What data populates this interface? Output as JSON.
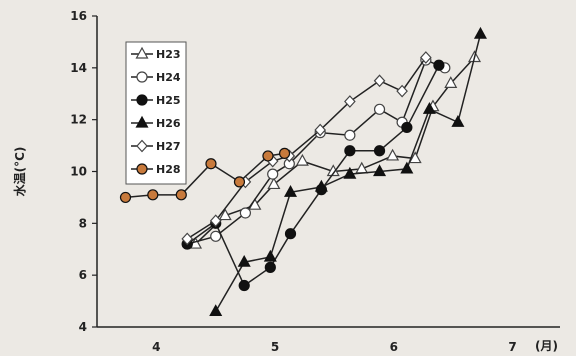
{
  "chart_data": {
    "type": "line",
    "ylabel": "水温(°C)",
    "xunit": "(月)",
    "xlim": [
      3.5,
      7.4
    ],
    "ylim": [
      4,
      16
    ],
    "xticks": [
      {
        "v": 4,
        "label": "4"
      },
      {
        "v": 5,
        "label": "5"
      },
      {
        "v": 6,
        "label": "6"
      },
      {
        "v": 7,
        "label": "7"
      }
    ],
    "yticks": [
      4,
      6,
      8,
      10,
      12,
      14,
      16
    ],
    "grid": false,
    "legend_position": "upper-left",
    "series": [
      {
        "name": "H23",
        "marker": "triangle-open",
        "color": "#555555",
        "points": [
          [
            4.33,
            7.2
          ],
          [
            4.58,
            8.3
          ],
          [
            4.83,
            8.7
          ],
          [
            4.99,
            9.5
          ],
          [
            5.23,
            10.4
          ],
          [
            5.49,
            10.0
          ],
          [
            5.73,
            10.1
          ],
          [
            5.99,
            10.6
          ],
          [
            6.18,
            10.5
          ],
          [
            6.33,
            12.5
          ],
          [
            6.48,
            13.4
          ],
          [
            6.68,
            14.4
          ]
        ]
      },
      {
        "name": "H24",
        "marker": "circle-open",
        "color": "#555555",
        "points": [
          [
            4.26,
            7.2
          ],
          [
            4.5,
            7.5
          ],
          [
            4.75,
            8.4
          ],
          [
            4.98,
            9.9
          ],
          [
            5.12,
            10.3
          ],
          [
            5.38,
            11.5
          ],
          [
            5.63,
            11.4
          ],
          [
            5.88,
            12.4
          ],
          [
            6.07,
            11.9
          ],
          [
            6.27,
            14.3
          ],
          [
            6.43,
            14.0
          ]
        ]
      },
      {
        "name": "H25",
        "marker": "circle-filled",
        "color": "#111111",
        "points": [
          [
            4.26,
            7.2
          ],
          [
            4.5,
            8.0
          ],
          [
            4.74,
            5.6
          ],
          [
            4.96,
            6.3
          ],
          [
            5.13,
            7.6
          ],
          [
            5.39,
            9.3
          ],
          [
            5.63,
            10.8
          ],
          [
            5.88,
            10.8
          ],
          [
            6.11,
            11.7
          ],
          [
            6.38,
            14.1
          ]
        ]
      },
      {
        "name": "H26",
        "marker": "triangle-filled",
        "color": "#111111",
        "points": [
          [
            4.5,
            4.6
          ],
          [
            4.74,
            6.5
          ],
          [
            4.96,
            6.7
          ],
          [
            5.13,
            9.2
          ],
          [
            5.39,
            9.4
          ],
          [
            5.63,
            9.9
          ],
          [
            5.88,
            10.0
          ],
          [
            6.11,
            10.1
          ],
          [
            6.3,
            12.4
          ],
          [
            6.54,
            11.9
          ],
          [
            6.73,
            15.3
          ]
        ]
      },
      {
        "name": "H27",
        "marker": "diamond-open",
        "color": "#555555",
        "points": [
          [
            4.26,
            7.4
          ],
          [
            4.5,
            8.1
          ],
          [
            4.75,
            9.6
          ],
          [
            4.98,
            10.4
          ],
          [
            5.12,
            10.6
          ],
          [
            5.38,
            11.6
          ],
          [
            5.63,
            12.7
          ],
          [
            5.88,
            13.5
          ],
          [
            6.07,
            13.1
          ],
          [
            6.27,
            14.4
          ]
        ]
      },
      {
        "name": "H28",
        "marker": "circle-filled",
        "color": "#c87a3c",
        "points": [
          [
            3.74,
            9.0
          ],
          [
            3.97,
            9.1
          ],
          [
            4.21,
            9.1
          ],
          [
            4.46,
            10.3
          ],
          [
            4.7,
            9.6
          ],
          [
            4.94,
            10.6
          ],
          [
            5.08,
            10.7
          ]
        ]
      }
    ]
  }
}
